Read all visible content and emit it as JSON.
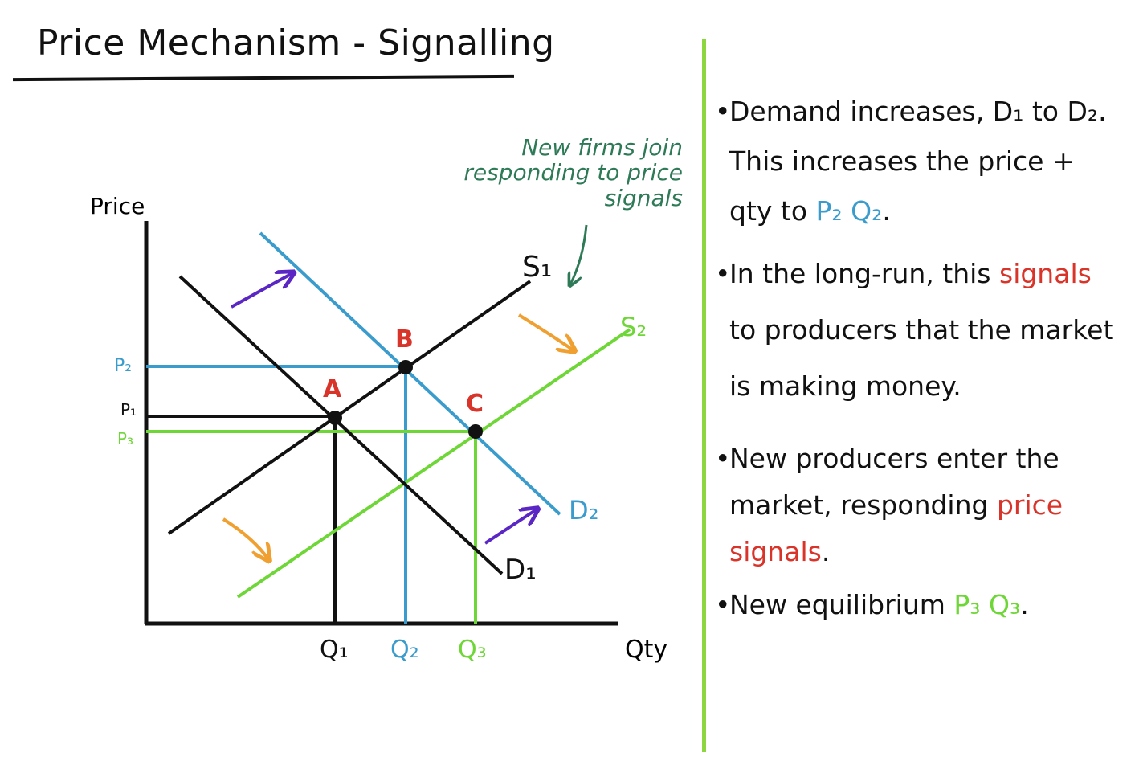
{
  "title": "Price Mechanism - Signalling",
  "axes": {
    "y_label": "Price",
    "x_label": "Qty"
  },
  "curves": {
    "s1": "S₁",
    "s2": "S₂",
    "d1": "D₁",
    "d2": "D₂"
  },
  "points": {
    "a": "A",
    "b": "B",
    "c": "C"
  },
  "price_ticks": {
    "p1": "P₁",
    "p2": "P₂",
    "p3": "P₃"
  },
  "qty_ticks": {
    "q1": "Q₁",
    "q2": "Q₂",
    "q3": "Q₃"
  },
  "annotation": {
    "line1": "New firms join",
    "line2": "responding to price",
    "line3": "signals"
  },
  "bullets": {
    "b1": {
      "text_a": "Demand increases, D₁ to D₂. This increases the price + qty to ",
      "highlight": "P₂ Q₂",
      "text_b": "."
    },
    "b2": {
      "text_a": "In the long-run, this ",
      "highlight": "signals",
      "text_b": " to producers that the market is making money."
    },
    "b3": {
      "text_a": "New producers enter the market, responding ",
      "highlight": "price signals",
      "text_b": "."
    },
    "b4": {
      "text_a": "New equilibrium ",
      "highlight": "P₃ Q₃",
      "text_b": "."
    }
  },
  "colors": {
    "black": "#111111",
    "blue": "#3a9ccc",
    "green": "#6fd638",
    "red": "#d8342a",
    "orange": "#f0a030",
    "purple": "#5a26c4",
    "dark_green": "#2e7a57",
    "divider": "#8ed63f"
  }
}
